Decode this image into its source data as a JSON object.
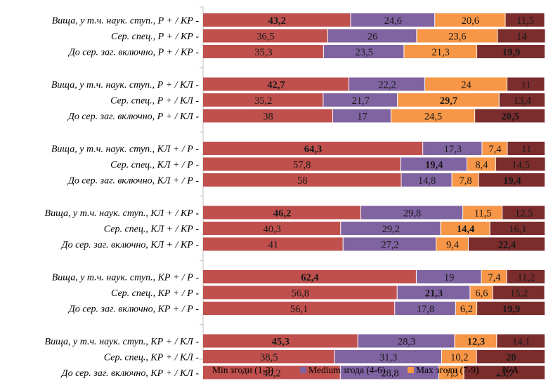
{
  "colors": {
    "min": "#c0504d",
    "medium": "#8064a2",
    "max": "#f79646",
    "na": "#7b2c2c",
    "label_dark": "#1a1a1a",
    "label_light": "#ffffff"
  },
  "chart_data": {
    "type": "bar",
    "orientation": "horizontal",
    "stacked": true,
    "xlim": [
      0,
      100
    ],
    "grid": false,
    "legend_position": "bottom",
    "categories": [
      "Вища, у т.ч. наук. ступ., Р + / КР -",
      "Сер. спец., Р + / КР -",
      "До сер. заг. включно, Р + / КР -",
      "Вища, у т.ч. наук. ступ., Р + / КЛ -",
      "Сер. спец., Р + / КЛ -",
      "До сер. заг. включно, Р + / КЛ -",
      "Вища, у т.ч. наук. ступ., КЛ + / Р -",
      "Сер. спец., КЛ + / Р -",
      "До сер. заг. включно, КЛ + / Р -",
      "Вища, у т.ч. наук. ступ., КЛ + / КР -",
      "Сер. спец., КЛ + / КР -",
      "До сер. заг. включно, КЛ + / КР -",
      "Вища, у т.ч. наук. ступ., КР + / Р -",
      "Сер. спец., КР + / Р -",
      "До сер. заг. включно, КР + / Р -",
      "Вища, у т.ч. наук. ступ., КР + / КЛ -",
      "Сер. спец., КР + / КЛ -",
      "До сер. заг. включно, КР + / КЛ -"
    ],
    "groups": [
      [
        0,
        1,
        2
      ],
      [
        3,
        4,
        5
      ],
      [
        6,
        7,
        8
      ],
      [
        9,
        10,
        11
      ],
      [
        12,
        13,
        14
      ],
      [
        15,
        16,
        17
      ]
    ],
    "series": [
      {
        "name": "Min згоди (1-3)",
        "color_key": "min",
        "values": [
          43.2,
          36.5,
          35.3,
          42.7,
          35.2,
          38,
          64.3,
          57.8,
          58,
          46.2,
          40.3,
          41,
          62.4,
          56.8,
          56.1,
          45.3,
          38.5,
          40.2
        ],
        "labels": [
          "43,2",
          "36,5",
          "35,3",
          "42,7",
          "35,2",
          "38",
          "64,3",
          "57,8",
          "58",
          "46,2",
          "40,3",
          "41",
          "62,4",
          "56,8",
          "56,1",
          "45,3",
          "38,5",
          "40,2"
        ],
        "bold": [
          true,
          false,
          false,
          true,
          false,
          false,
          true,
          false,
          false,
          true,
          false,
          false,
          true,
          false,
          false,
          true,
          false,
          false
        ]
      },
      {
        "name": "Medium згода (4-6)",
        "color_key": "medium",
        "values": [
          24.6,
          26,
          23.5,
          22.2,
          21.7,
          17,
          17.3,
          19.4,
          14.8,
          29.8,
          29.2,
          27.2,
          19,
          21.3,
          17.8,
          28.3,
          31.3,
          28.8
        ],
        "labels": [
          "24,6",
          "26",
          "23,5",
          "22,2",
          "21,7",
          "17",
          "17,3",
          "19,4",
          "14,8",
          "29,8",
          "29,2",
          "27,2",
          "19",
          "21,3",
          "17,8",
          "28,3",
          "31,3",
          "28,8"
        ],
        "bold": [
          false,
          false,
          false,
          false,
          false,
          false,
          false,
          true,
          false,
          false,
          false,
          false,
          false,
          true,
          false,
          false,
          false,
          false
        ]
      },
      {
        "name": "Max згоди (7-9)",
        "color_key": "max",
        "values": [
          20.6,
          23.6,
          21.3,
          24,
          29.7,
          24.5,
          7.4,
          8.4,
          7.8,
          11.5,
          14.4,
          9.4,
          7.4,
          6.6,
          6.2,
          12.3,
          10.2,
          7.3
        ],
        "labels": [
          "20,6",
          "23,6",
          "21,3",
          "24",
          "29,7",
          "24,5",
          "7,4",
          "8,4",
          "7,8",
          "11,5",
          "14,4",
          "9,4",
          "7,4",
          "6,6",
          "6,2",
          "12,3",
          "10,2",
          "7,3"
        ],
        "bold": [
          false,
          false,
          false,
          false,
          true,
          false,
          false,
          false,
          false,
          false,
          true,
          false,
          false,
          false,
          false,
          true,
          false,
          false
        ]
      },
      {
        "name": "N/A",
        "color_key": "na",
        "values": [
          11.5,
          14,
          19.9,
          11,
          13.4,
          20.5,
          11,
          14.5,
          19.4,
          12.5,
          16.1,
          22.4,
          11.2,
          15.2,
          19.9,
          14.1,
          20,
          23.7
        ],
        "labels": [
          "11,5",
          "14",
          "19,9",
          "11",
          "13,4",
          "20,5",
          "11",
          "14,5",
          "19,4",
          "12,5",
          "16,1",
          "22,4",
          "11,2",
          "15,2",
          "19,9",
          "14,1",
          "20",
          "23,7"
        ],
        "bold": [
          false,
          false,
          true,
          false,
          false,
          true,
          false,
          false,
          true,
          false,
          false,
          true,
          false,
          false,
          true,
          false,
          true,
          true
        ]
      }
    ]
  }
}
